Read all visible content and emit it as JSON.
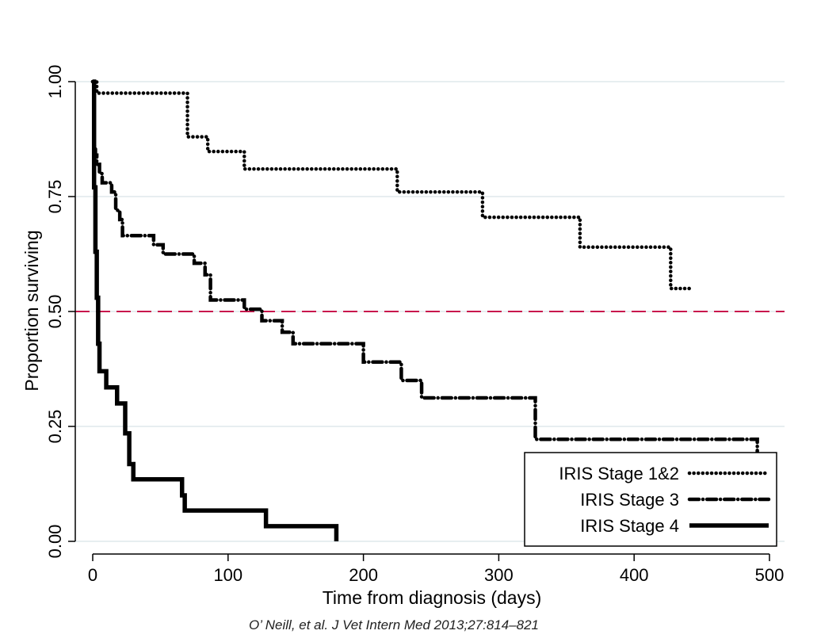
{
  "chart_data": {
    "type": "line",
    "step": true,
    "xlabel": "Time from diagnosis (days)",
    "ylabel": "Proportion surviving",
    "xlim": [
      0,
      500
    ],
    "ylim": [
      0,
      1
    ],
    "xticks": [
      0,
      100,
      200,
      300,
      400,
      500
    ],
    "yticks": [
      0,
      0.25,
      0.5,
      0.75,
      1
    ],
    "xtick_labels": [
      "0",
      "100",
      "200",
      "300",
      "400",
      "500"
    ],
    "ytick_labels": [
      "0.00",
      "0.25",
      "0.50",
      "0.75",
      "1.00"
    ],
    "grid": true,
    "legend_position": "bottom-right",
    "reference_line": {
      "y": 0.5,
      "color": "#c8174c",
      "style": "dashed"
    },
    "citation": "O’ Neill, et al. J Vet Intern Med 2013;27:814–821",
    "series": [
      {
        "name": "IRIS Stage 1&2",
        "style": "dotted",
        "color": "#000000",
        "x": [
          0,
          3,
          70,
          85,
          112,
          225,
          288,
          360,
          427,
          441
        ],
        "y": [
          1.0,
          0.975,
          0.88,
          0.848,
          0.81,
          0.76,
          0.705,
          0.64,
          0.55,
          0.55
        ]
      },
      {
        "name": "IRIS Stage 3",
        "style": "dash-dot",
        "color": "#000000",
        "x": [
          0,
          1,
          2,
          3,
          5,
          7,
          10,
          14,
          17,
          20,
          22,
          40,
          45,
          52,
          58,
          75,
          83,
          87,
          112,
          125,
          140,
          148,
          200,
          228,
          243,
          327,
          491,
          493
        ],
        "y": [
          1.0,
          0.86,
          0.84,
          0.82,
          0.8,
          0.78,
          0.78,
          0.76,
          0.72,
          0.7,
          0.665,
          0.665,
          0.645,
          0.625,
          0.625,
          0.605,
          0.58,
          0.525,
          0.505,
          0.48,
          0.455,
          0.43,
          0.39,
          0.35,
          0.312,
          0.222,
          0.19,
          0.19
        ]
      },
      {
        "name": "IRIS Stage 4",
        "style": "solid-thick",
        "color": "#000000",
        "x": [
          0,
          1,
          2,
          3,
          4,
          5,
          7,
          10,
          18,
          24,
          27,
          30,
          33,
          66,
          68,
          128,
          180
        ],
        "y": [
          1.0,
          0.77,
          0.63,
          0.53,
          0.43,
          0.37,
          0.37,
          0.335,
          0.3,
          0.235,
          0.168,
          0.135,
          0.135,
          0.1,
          0.067,
          0.033,
          0.0
        ]
      }
    ]
  }
}
